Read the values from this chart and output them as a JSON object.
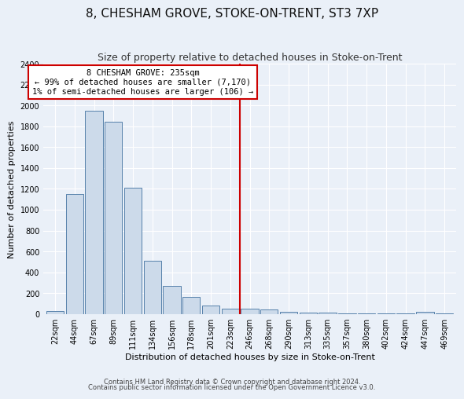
{
  "title": "8, CHESHAM GROVE, STOKE-ON-TRENT, ST3 7XP",
  "subtitle": "Size of property relative to detached houses in Stoke-on-Trent",
  "xlabel": "Distribution of detached houses by size in Stoke-on-Trent",
  "ylabel": "Number of detached properties",
  "bin_labels": [
    "22sqm",
    "44sqm",
    "67sqm",
    "89sqm",
    "111sqm",
    "134sqm",
    "156sqm",
    "178sqm",
    "201sqm",
    "223sqm",
    "246sqm",
    "268sqm",
    "290sqm",
    "313sqm",
    "335sqm",
    "357sqm",
    "380sqm",
    "402sqm",
    "424sqm",
    "447sqm",
    "469sqm"
  ],
  "bar_heights": [
    25,
    1150,
    1950,
    1840,
    1210,
    510,
    270,
    160,
    80,
    50,
    50,
    40,
    20,
    15,
    12,
    8,
    5,
    5,
    5,
    20,
    5
  ],
  "bar_color": "#ccdaea",
  "bar_edge_color": "#5580aa",
  "vline_color": "#cc0000",
  "annotation_text": "8 CHESHAM GROVE: 235sqm\n← 99% of detached houses are smaller (7,170)\n1% of semi-detached houses are larger (106) →",
  "annotation_box_color": "#ffffff",
  "annotation_box_edge": "#cc0000",
  "footer1": "Contains HM Land Registry data © Crown copyright and database right 2024.",
  "footer2": "Contains public sector information licensed under the Open Government Licence v3.0.",
  "ylim": [
    0,
    2400
  ],
  "yticks": [
    0,
    200,
    400,
    600,
    800,
    1000,
    1200,
    1400,
    1600,
    1800,
    2000,
    2200,
    2400
  ],
  "bg_color": "#eaf0f8",
  "grid_color": "#ffffff",
  "title_fontsize": 11,
  "subtitle_fontsize": 9,
  "axis_label_fontsize": 8,
  "tick_fontsize": 7
}
